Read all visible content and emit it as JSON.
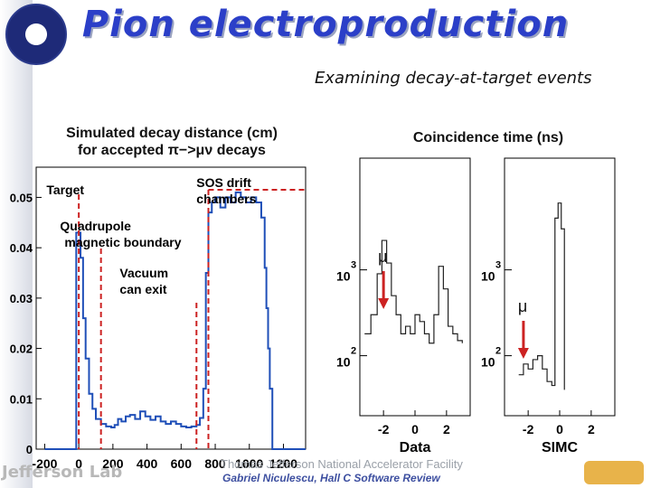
{
  "page": {
    "title": "Pion electroproduction",
    "subtitle": "Examining decay-at-target events"
  },
  "footer": {
    "lab": "Thomas Jefferson National Accelerator Facility",
    "logo_text": "Jefferson Lab",
    "credit": "Gabriel Niculescu, Hall C Software Review"
  },
  "colors": {
    "title": "#2b3fc8",
    "histogram": "#1f4fb8",
    "marker_lines": "#cc2222",
    "arrows": "#cc2222"
  },
  "chart_data": [
    {
      "type": "histogram",
      "title_line1": "Simulated decay distance (cm)",
      "title_line2": "for accepted π−>μν decays",
      "xlim": [
        -250,
        1330
      ],
      "ylim": [
        0,
        0.056
      ],
      "xticks": [
        "-200",
        "0",
        "200",
        "400",
        "600",
        "800",
        "1000",
        "1200"
      ],
      "xtick_values": [
        -200,
        0,
        200,
        400,
        600,
        800,
        1000,
        1200
      ],
      "yticks": [
        "0",
        "0.01",
        "0.02",
        "0.03",
        "0.04",
        "0.05"
      ],
      "ytick_values": [
        0,
        0.01,
        0.02,
        0.03,
        0.04,
        0.05
      ],
      "annotations": [
        {
          "text": "Target",
          "x": 0
        },
        {
          "text": "Quadrupole",
          "line2": "magnetic boundary",
          "x": 130
        },
        {
          "text": "Vacuum",
          "line2": "can exit",
          "x": 690
        },
        {
          "text": "SOS drift",
          "line2": "chambers",
          "x": 760
        }
      ],
      "bins": [
        [
          -200,
          0
        ],
        [
          -150,
          0
        ],
        [
          -100,
          0
        ],
        [
          -50,
          0
        ],
        [
          -15,
          0.043
        ],
        [
          10,
          0.038
        ],
        [
          25,
          0.026
        ],
        [
          40,
          0.018
        ],
        [
          60,
          0.011
        ],
        [
          80,
          0.008
        ],
        [
          100,
          0.006
        ],
        [
          130,
          0.005
        ],
        [
          160,
          0.0045
        ],
        [
          190,
          0.0043
        ],
        [
          210,
          0.0048
        ],
        [
          230,
          0.006
        ],
        [
          250,
          0.0055
        ],
        [
          275,
          0.0065
        ],
        [
          300,
          0.0068
        ],
        [
          330,
          0.006
        ],
        [
          360,
          0.0075
        ],
        [
          390,
          0.0065
        ],
        [
          420,
          0.0058
        ],
        [
          450,
          0.0065
        ],
        [
          480,
          0.0055
        ],
        [
          510,
          0.005
        ],
        [
          540,
          0.0055
        ],
        [
          570,
          0.005
        ],
        [
          600,
          0.0045
        ],
        [
          630,
          0.0043
        ],
        [
          660,
          0.0045
        ],
        [
          690,
          0.0048
        ],
        [
          710,
          0.0062
        ],
        [
          730,
          0.012
        ],
        [
          745,
          0.035
        ],
        [
          760,
          0.047
        ],
        [
          780,
          0.049
        ],
        [
          800,
          0.05
        ],
        [
          830,
          0.048
        ],
        [
          860,
          0.05
        ],
        [
          890,
          0.049
        ],
        [
          920,
          0.051
        ],
        [
          950,
          0.05
        ],
        [
          980,
          0.049
        ],
        [
          1010,
          0.05
        ],
        [
          1040,
          0.049
        ],
        [
          1070,
          0.046
        ],
        [
          1090,
          0.036
        ],
        [
          1100,
          0.028
        ],
        [
          1110,
          0.02
        ],
        [
          1120,
          0.012
        ],
        [
          1135,
          0.0
        ],
        [
          1200,
          0
        ]
      ]
    },
    {
      "type": "histogram",
      "title": "Coincidence time (ns)",
      "log_y": true,
      "panels": [
        {
          "xlabel": "Data",
          "xticks": [
            "-2",
            "0",
            "2"
          ],
          "ylabels": [
            "10",
            "10"
          ],
          "exponents": [
            "3",
            "2"
          ],
          "marker": "μ",
          "points": [
            [
              -3.2,
              180
            ],
            [
              -2.8,
              300
            ],
            [
              -2.4,
              900
            ],
            [
              -2.1,
              2200
            ],
            [
              -1.8,
              1200
            ],
            [
              -1.5,
              500
            ],
            [
              -1.2,
              300
            ],
            [
              -0.9,
              180
            ],
            [
              -0.6,
              220
            ],
            [
              -0.3,
              180
            ],
            [
              0,
              300
            ],
            [
              0.3,
              250
            ],
            [
              0.6,
              180
            ],
            [
              0.9,
              140
            ],
            [
              1.2,
              300
            ],
            [
              1.5,
              1100
            ],
            [
              1.8,
              600
            ],
            [
              2.1,
              220
            ],
            [
              2.4,
              180
            ],
            [
              2.7,
              150
            ],
            [
              3.0,
              140
            ]
          ]
        },
        {
          "xlabel": "SIMC",
          "xticks": [
            "-2",
            "0",
            "2"
          ],
          "ylabels": [
            "10",
            "10"
          ],
          "exponents": [
            "3",
            "2"
          ],
          "marker": "μ",
          "points": [
            [
              -2.6,
              60
            ],
            [
              -2.3,
              80
            ],
            [
              -2.0,
              70
            ],
            [
              -1.7,
              90
            ],
            [
              -1.4,
              100
            ],
            [
              -1.1,
              70
            ],
            [
              -0.8,
              50
            ],
            [
              -0.5,
              45
            ],
            [
              -0.3,
              4000
            ],
            [
              -0.1,
              6000
            ],
            [
              0.1,
              3000
            ],
            [
              0.3,
              40
            ]
          ]
        }
      ]
    }
  ]
}
